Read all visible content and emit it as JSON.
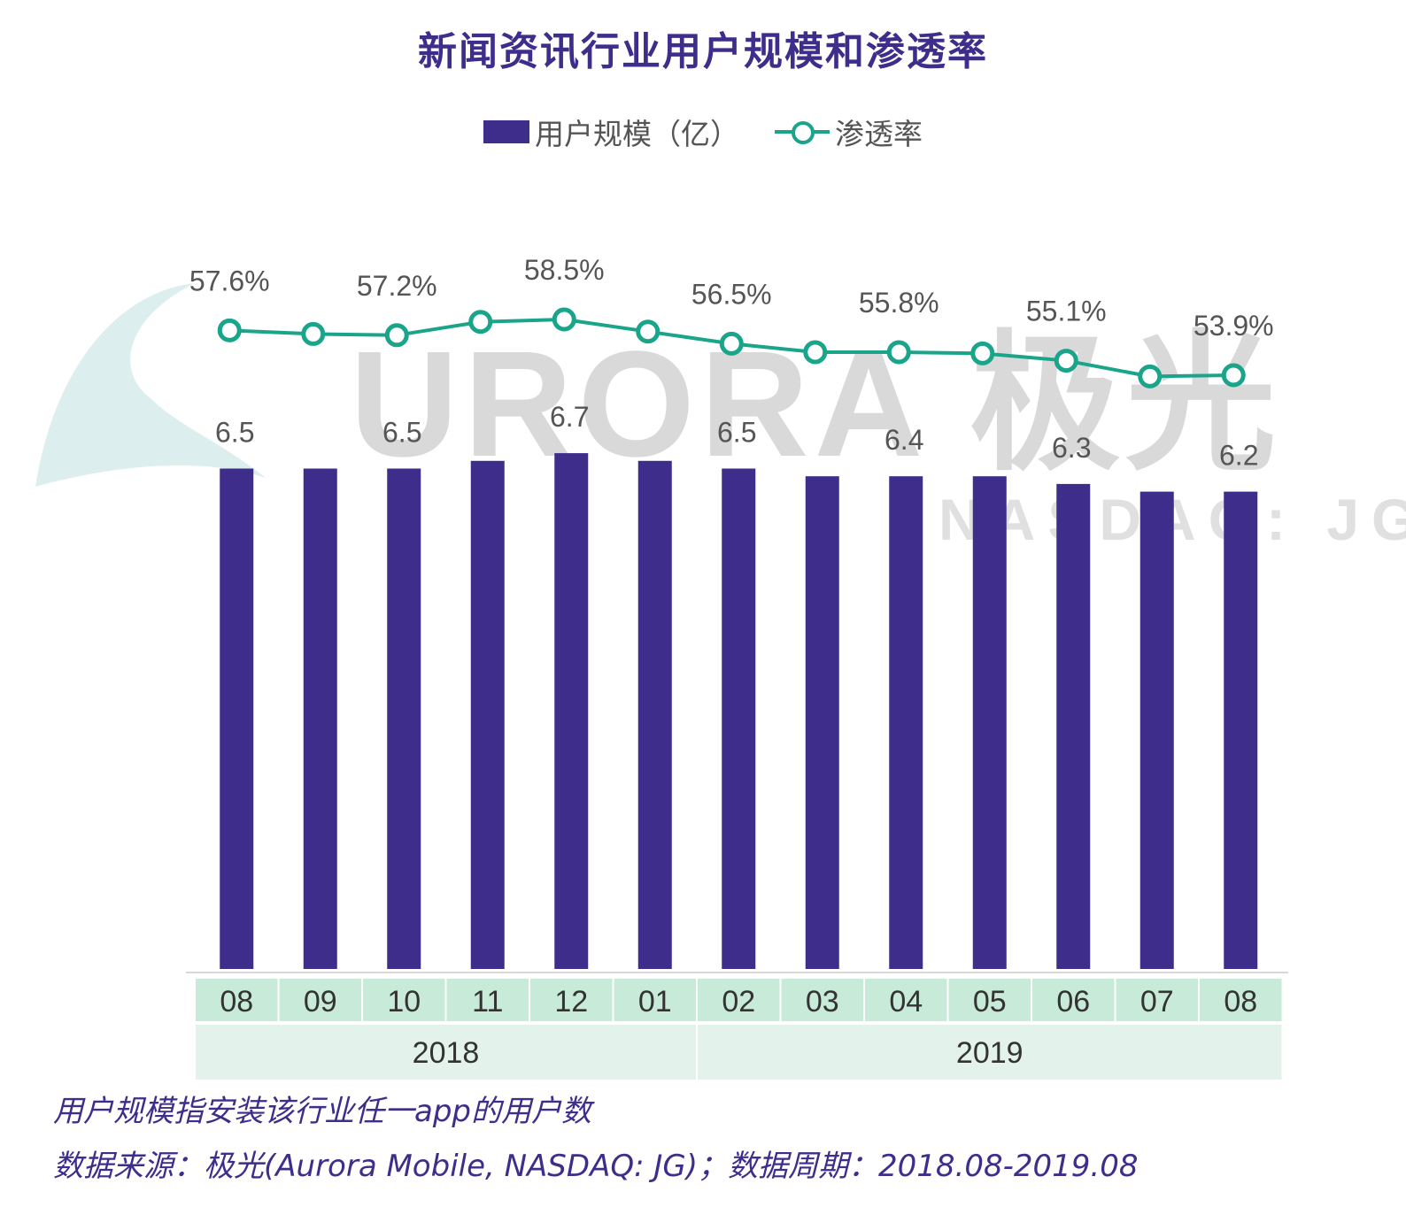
{
  "header": {
    "title": "新闻资讯行业用户规模和渗透率"
  },
  "legend": {
    "bar_label": "用户规模（亿）",
    "line_label": "渗透率"
  },
  "watermark": {
    "text": "URORA 极光",
    "subtext": "NASDAQ: JG"
  },
  "colors": {
    "bar": "#3f2d8c",
    "line": "#1aa58b",
    "month_band": "#c8ead9",
    "year_band": "#e3f3eb",
    "title": "#3f2d8c"
  },
  "chart_data": {
    "type": "bar",
    "categories": [
      "08",
      "09",
      "10",
      "11",
      "12",
      "01",
      "02",
      "03",
      "04",
      "05",
      "06",
      "07",
      "08"
    ],
    "year_groups": [
      {
        "label": "2018",
        "count": 6
      },
      {
        "label": "2019",
        "count": 7
      }
    ],
    "series": [
      {
        "name": "用户规模（亿）",
        "type": "bar",
        "values": [
          6.5,
          6.5,
          6.5,
          6.6,
          6.7,
          6.6,
          6.5,
          6.4,
          6.4,
          6.4,
          6.3,
          6.2,
          6.2
        ],
        "labels": [
          "6.5",
          "",
          "6.5",
          "",
          "6.7",
          "",
          "6.5",
          "",
          "6.4",
          "",
          "6.3",
          "",
          "6.2"
        ]
      },
      {
        "name": "渗透率",
        "type": "line",
        "unit": "%",
        "values": [
          57.6,
          57.3,
          57.2,
          58.3,
          58.5,
          57.5,
          56.5,
          55.8,
          55.8,
          55.7,
          55.1,
          53.8,
          53.9
        ],
        "labels": [
          "57.6%",
          "",
          "57.2%",
          "",
          "58.5%",
          "",
          "56.5%",
          "",
          "55.8%",
          "",
          "55.1%",
          "",
          "53.9%"
        ]
      }
    ],
    "grid": false,
    "legend_position": "top-center"
  },
  "footer": {
    "note": "用户规模指安装该行业任一app的用户数",
    "source": "数据来源：极光(Aurora Mobile, NASDAQ: JG)；数据周期：2018.08-2019.08"
  }
}
